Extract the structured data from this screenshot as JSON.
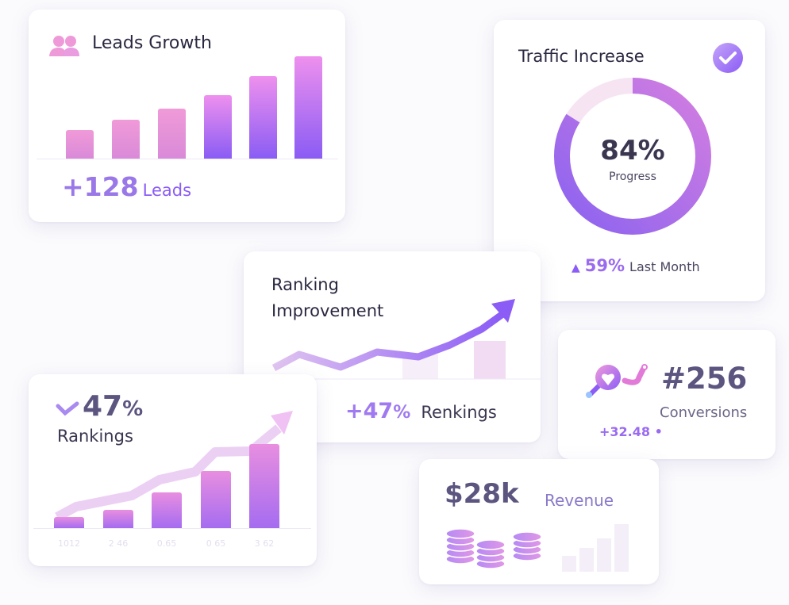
{
  "leads": {
    "title": "Leads Growth",
    "icon": "users-icon",
    "value": "+128",
    "unit": "Leads",
    "bars": [
      0.28,
      0.38,
      0.49,
      0.62,
      0.81,
      1.0
    ]
  },
  "traffic": {
    "title": "Traffic Increase",
    "icon": "check-circle-icon",
    "percent": "84%",
    "progress": 84,
    "label": "Progress",
    "change": "59%",
    "change_label": "Last Month"
  },
  "ranking_improvement": {
    "title_line1": "Ranking",
    "title_line2": "Improvement",
    "value": "+47",
    "percent_sign": "%",
    "label": "Renkings"
  },
  "rankings": {
    "value": "47",
    "percent_sign": "%",
    "label": "Rankings",
    "bars": [
      0.13,
      0.22,
      0.42,
      0.68,
      1.0
    ],
    "tick_labels": [
      "1012",
      "2 46",
      "0.65",
      "0 65",
      "3 62"
    ]
  },
  "conversions": {
    "value": "#256",
    "label": "Conversions",
    "change": "+32.48"
  },
  "revenue": {
    "value": "$28k",
    "label": "Revenue"
  },
  "colors": {
    "accent": "#8b5cf6",
    "pink": "#ee8fd8",
    "text": "#2a2840",
    "muted": "#6a6688"
  }
}
